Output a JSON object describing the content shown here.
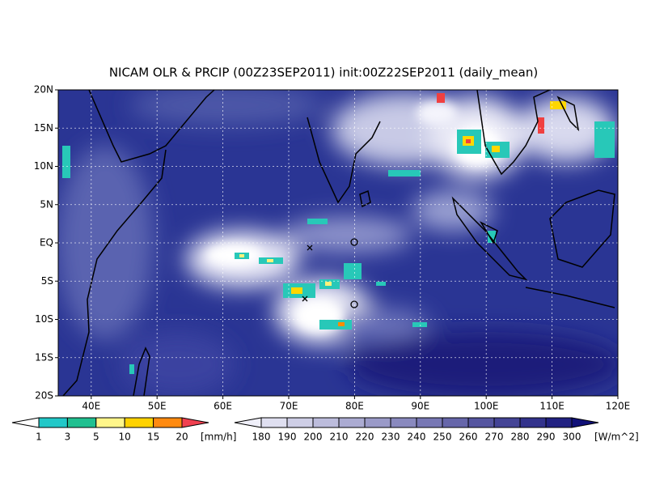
{
  "title": "NICAM OLR & PRCIP (00Z23SEP2011) init:00Z22SEP2011 (daily_mean)",
  "lat_labels": [
    "20N",
    "15N",
    "10N",
    "5N",
    "EQ",
    "5S",
    "10S",
    "15S",
    "20S"
  ],
  "lon_labels": [
    "40E",
    "50E",
    "60E",
    "70E",
    "80E",
    "90E",
    "100E",
    "110E",
    "120E"
  ],
  "precip_colorbar": {
    "levels": [
      1,
      3,
      5,
      10,
      15,
      20
    ],
    "unit": "[mm/h]"
  },
  "olr_colorbar": {
    "levels": [
      180,
      190,
      200,
      210,
      220,
      230,
      240,
      250,
      260,
      270,
      280,
      290,
      300
    ],
    "unit": "[W/m^2]"
  }
}
